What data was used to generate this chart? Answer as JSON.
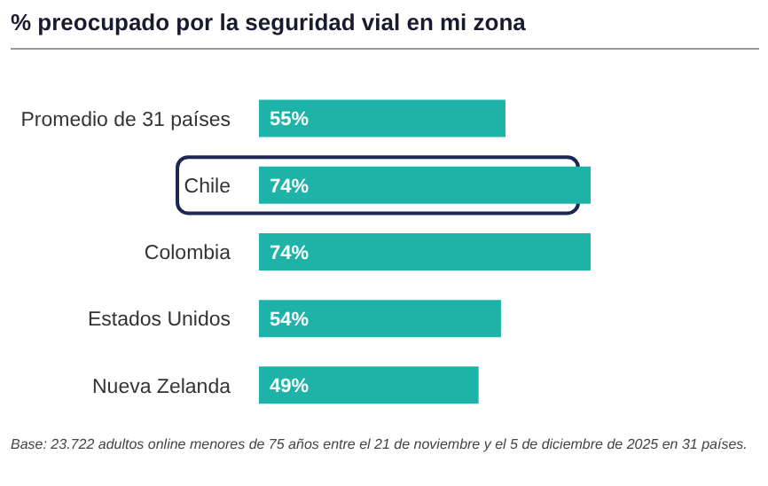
{
  "chart_data": {
    "type": "bar",
    "orientation": "horizontal",
    "title": "% preocupado por la seguridad vial en mi zona",
    "categories": [
      "Promedio de 31 países",
      "Chile",
      "Colombia",
      "Estados Unidos",
      "Nueva Zelanda"
    ],
    "values": [
      55,
      74,
      74,
      54,
      49
    ],
    "value_labels": [
      "55%",
      "74%",
      "74%",
      "54%",
      "49%"
    ],
    "color": "#1db3a9",
    "annotations": [
      "Base: 23.722 adultos online menores de 75 años entre el 21 de noviembre y el 5 de diciembre de 2025 en 31 países."
    ]
  }
}
